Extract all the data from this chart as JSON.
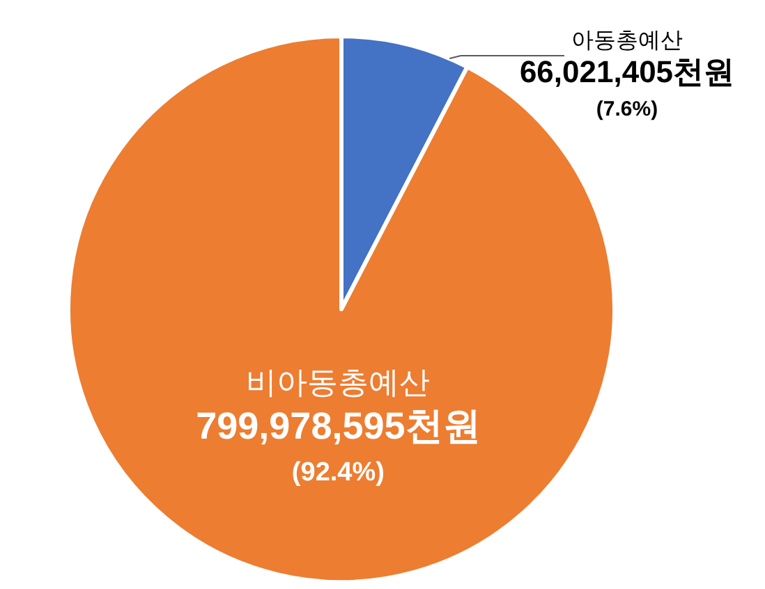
{
  "chart_data": {
    "type": "pie",
    "categories": [
      "아동총예산",
      "비아동총예산"
    ],
    "values": [
      66021405,
      799978595
    ],
    "colors": [
      "#4472c4",
      "#ed7d31"
    ],
    "value_labels": [
      "66,021,405천원",
      "799,978,595천원"
    ],
    "annotations": [
      "(7.6%)",
      "(92.4%)"
    ]
  }
}
